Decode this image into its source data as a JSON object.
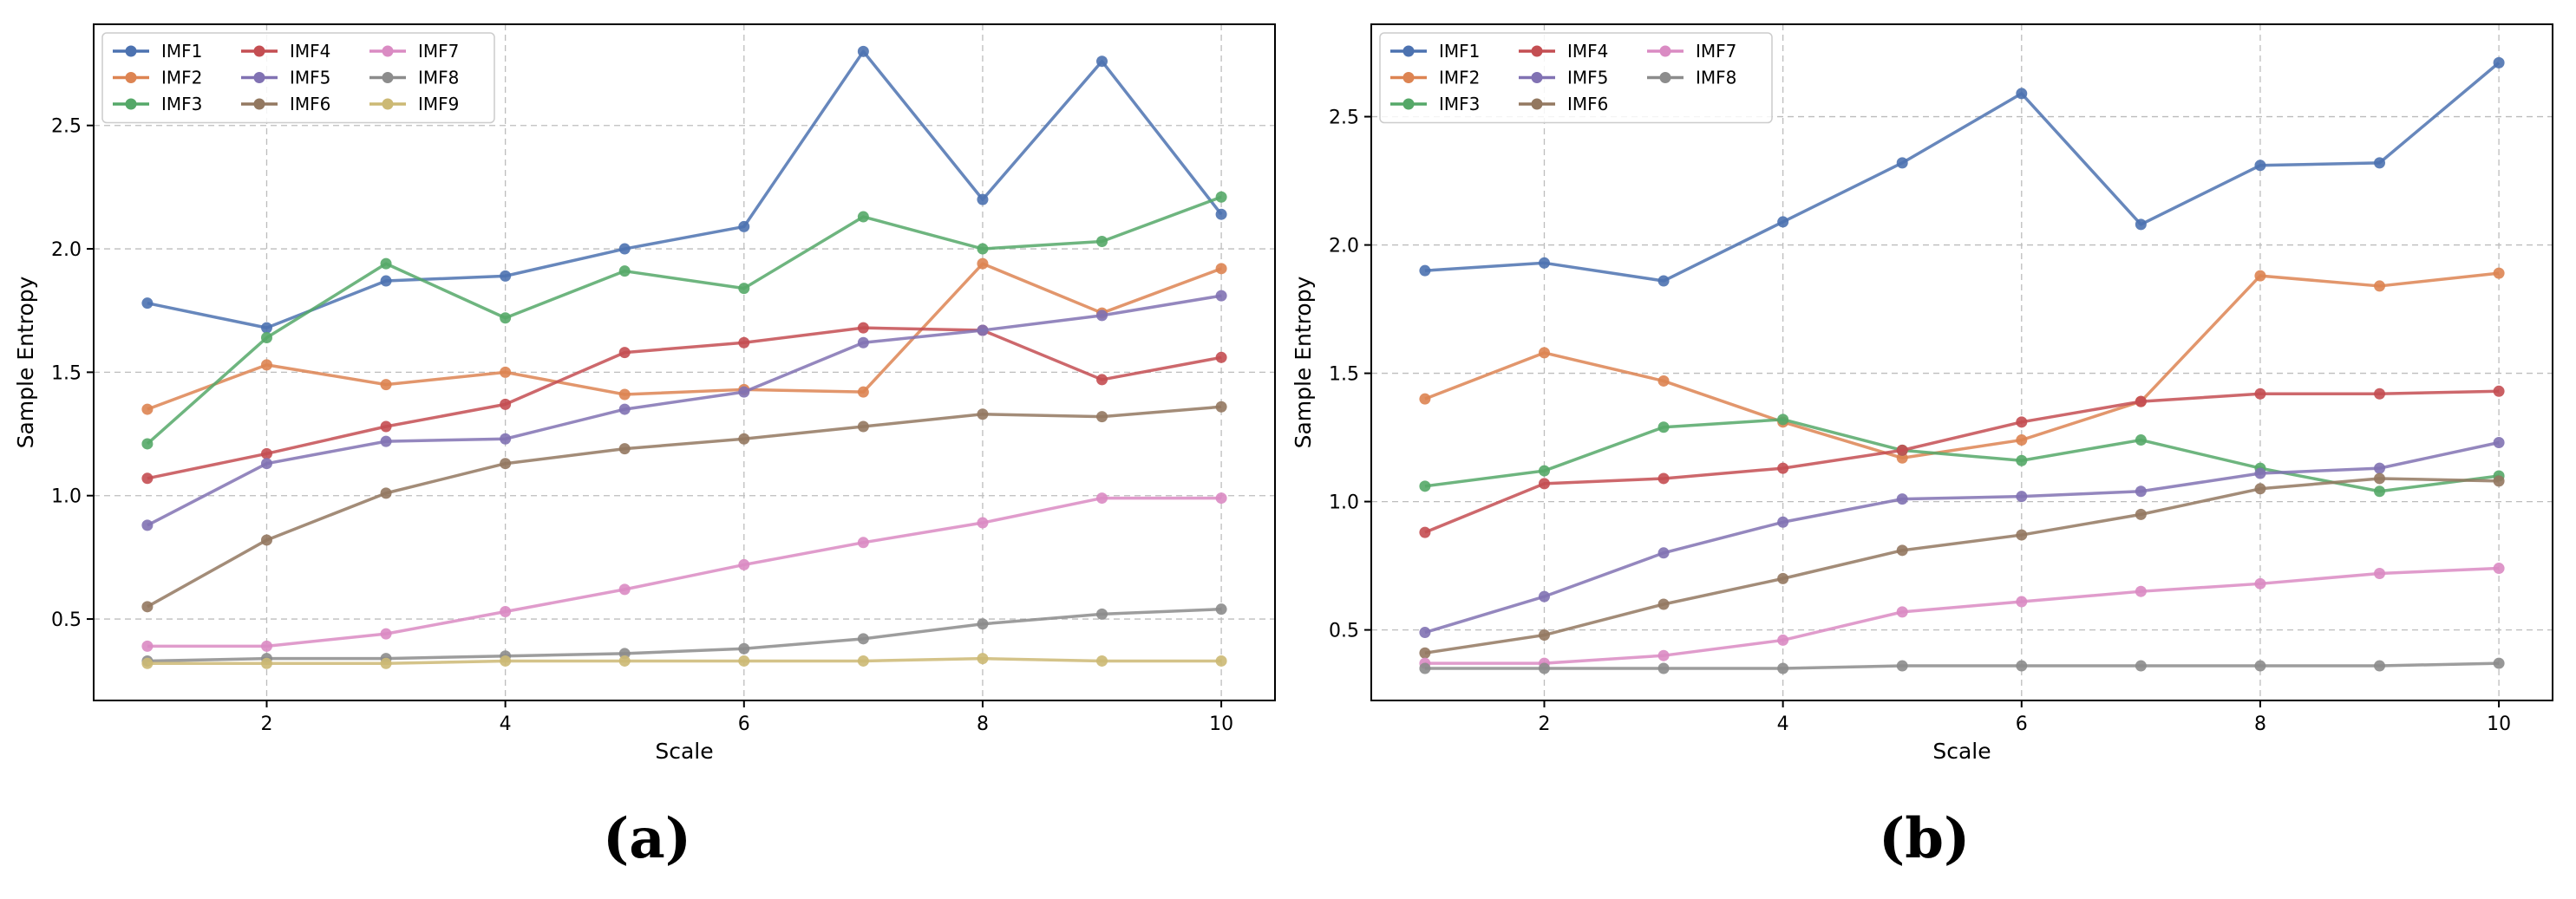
{
  "chart_data": [
    {
      "type": "line",
      "caption": "(a)",
      "xlabel": "Scale",
      "ylabel": "Sample Entropy",
      "xlim": [
        0.55,
        10.45
      ],
      "ylim": [
        0.17,
        2.91
      ],
      "xticks": [
        2,
        4,
        6,
        8,
        10
      ],
      "xtick_labels": [
        "2",
        "4",
        "6",
        "8",
        "10"
      ],
      "yticks": [
        0.5,
        1.0,
        1.5,
        2.0,
        2.5
      ],
      "ytick_labels": [
        "0.5",
        "1.0",
        "1.5",
        "2.0",
        "2.5"
      ],
      "grid": true,
      "legend_position": "top-left",
      "x": [
        1,
        2,
        3,
        4,
        5,
        6,
        7,
        8,
        9,
        10
      ],
      "series": [
        {
          "name": "IMF1",
          "color": "#4c72b0",
          "values": [
            1.78,
            1.68,
            1.87,
            1.89,
            2.0,
            2.09,
            2.8,
            2.2,
            2.76,
            2.14
          ]
        },
        {
          "name": "IMF2",
          "color": "#dd8452",
          "values": [
            1.35,
            1.53,
            1.45,
            1.5,
            1.41,
            1.43,
            1.42,
            1.94,
            1.74,
            1.92
          ]
        },
        {
          "name": "IMF3",
          "color": "#55a868",
          "values": [
            1.21,
            1.64,
            1.94,
            1.72,
            1.91,
            1.84,
            2.13,
            2.0,
            2.03,
            2.21
          ]
        },
        {
          "name": "IMF4",
          "color": "#c44e52",
          "values": [
            1.07,
            1.17,
            1.28,
            1.37,
            1.58,
            1.62,
            1.68,
            1.67,
            1.47,
            1.56
          ]
        },
        {
          "name": "IMF5",
          "color": "#8172b3",
          "values": [
            0.88,
            1.13,
            1.22,
            1.23,
            1.35,
            1.42,
            1.62,
            1.67,
            1.73,
            1.81
          ]
        },
        {
          "name": "IMF6",
          "color": "#937860",
          "values": [
            0.55,
            0.82,
            1.01,
            1.13,
            1.19,
            1.23,
            1.28,
            1.33,
            1.32,
            1.36
          ]
        },
        {
          "name": "IMF7",
          "color": "#da8bc3",
          "values": [
            0.39,
            0.39,
            0.44,
            0.53,
            0.62,
            0.72,
            0.81,
            0.89,
            0.99,
            0.99
          ]
        },
        {
          "name": "IMF8",
          "color": "#8c8c8c",
          "values": [
            0.33,
            0.34,
            0.34,
            0.35,
            0.36,
            0.38,
            0.42,
            0.48,
            0.52,
            0.54
          ]
        },
        {
          "name": "IMF9",
          "color": "#ccb974",
          "values": [
            0.32,
            0.32,
            0.32,
            0.33,
            0.33,
            0.33,
            0.33,
            0.34,
            0.33,
            0.33
          ]
        }
      ]
    },
    {
      "type": "line",
      "caption": "(b)",
      "xlabel": "Scale",
      "ylabel": "Sample Entropy",
      "xlim": [
        0.55,
        10.45
      ],
      "ylim": [
        0.225,
        2.86
      ],
      "xticks": [
        2,
        4,
        6,
        8,
        10
      ],
      "xtick_labels": [
        "2",
        "4",
        "6",
        "8",
        "10"
      ],
      "yticks": [
        0.5,
        1.0,
        1.5,
        2.0,
        2.5
      ],
      "ytick_labels": [
        "0.5",
        "1.0",
        "1.5",
        "2.0",
        "2.5"
      ],
      "grid": true,
      "legend_position": "top-left",
      "x": [
        1,
        2,
        3,
        4,
        5,
        6,
        7,
        8,
        9,
        10
      ],
      "series": [
        {
          "name": "IMF1",
          "color": "#4c72b0",
          "values": [
            1.9,
            1.93,
            1.86,
            2.09,
            2.32,
            2.59,
            2.08,
            2.31,
            2.32,
            2.71
          ]
        },
        {
          "name": "IMF2",
          "color": "#dd8452",
          "values": [
            1.4,
            1.58,
            1.47,
            1.31,
            1.17,
            1.24,
            1.39,
            1.88,
            1.84,
            1.89
          ]
        },
        {
          "name": "IMF3",
          "color": "#55a868",
          "values": [
            1.06,
            1.12,
            1.29,
            1.32,
            1.2,
            1.16,
            1.24,
            1.13,
            1.04,
            1.1
          ]
        },
        {
          "name": "IMF4",
          "color": "#c44e52",
          "values": [
            0.88,
            1.07,
            1.09,
            1.13,
            1.2,
            1.31,
            1.39,
            1.42,
            1.42,
            1.43
          ]
        },
        {
          "name": "IMF5",
          "color": "#8172b3",
          "values": [
            0.49,
            0.63,
            0.8,
            0.92,
            1.01,
            1.02,
            1.04,
            1.11,
            1.13,
            1.23
          ]
        },
        {
          "name": "IMF6",
          "color": "#937860",
          "values": [
            0.41,
            0.48,
            0.6,
            0.7,
            0.81,
            0.87,
            0.95,
            1.05,
            1.09,
            1.08
          ]
        },
        {
          "name": "IMF7",
          "color": "#da8bc3",
          "values": [
            0.37,
            0.37,
            0.4,
            0.46,
            0.57,
            0.61,
            0.65,
            0.68,
            0.72,
            0.74
          ]
        },
        {
          "name": "IMF8",
          "color": "#8c8c8c",
          "values": [
            0.35,
            0.35,
            0.35,
            0.35,
            0.36,
            0.36,
            0.36,
            0.36,
            0.36,
            0.37
          ]
        }
      ]
    }
  ]
}
